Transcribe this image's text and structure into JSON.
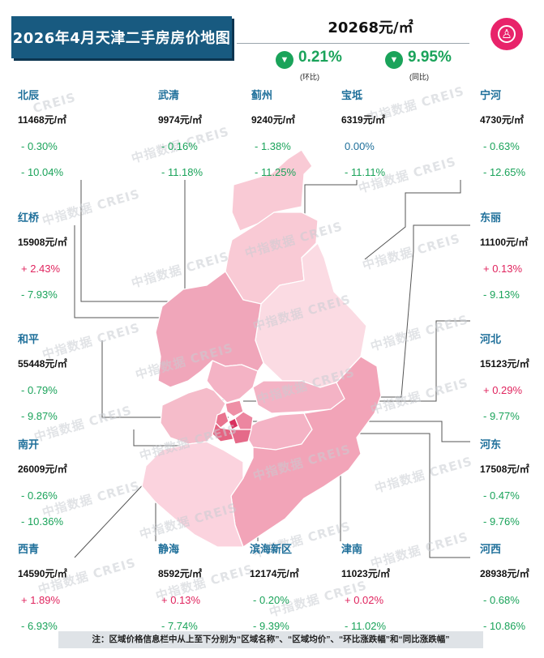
{
  "title": "2026年4月天津二手房房价地图",
  "summary": {
    "avg_price": "20268元/㎡",
    "mom": {
      "value": "0.21%",
      "label": "(环比)",
      "direction": "down"
    },
    "yoy": {
      "value": "9.95%",
      "label": "(同比)",
      "direction": "down"
    }
  },
  "colors": {
    "banner": "#185a80",
    "district_name": "#1e6f9a",
    "down": "#1aa35a",
    "up": "#e0245e",
    "logo": "#e8236a"
  },
  "logo_icon": "creis-logo-icon",
  "watermark": [
    "中指数据",
    "CREIS"
  ],
  "districts": [
    {
      "id": "beichen",
      "name": "北辰",
      "price": "11468元/㎡",
      "mom": "- 0.30%",
      "mom_dir": "down",
      "yoy": "- 10.04%",
      "yoy_dir": "down"
    },
    {
      "id": "wuqing",
      "name": "武清",
      "price": "9974元/㎡",
      "mom": "- 0.16%",
      "mom_dir": "down",
      "yoy": "- 11.18%",
      "yoy_dir": "down"
    },
    {
      "id": "jizhou",
      "name": "蓟州",
      "price": "9240元/㎡",
      "mom": "- 1.38%",
      "mom_dir": "down",
      "yoy": "- 11.25%",
      "yoy_dir": "down"
    },
    {
      "id": "baodi",
      "name": "宝坻",
      "price": "6319元/㎡",
      "mom": "0.00%",
      "mom_dir": "flat",
      "yoy": "- 11.11%",
      "yoy_dir": "down"
    },
    {
      "id": "ninghe",
      "name": "宁河",
      "price": "4730元/㎡",
      "mom": "- 0.63%",
      "mom_dir": "down",
      "yoy": "- 12.65%",
      "yoy_dir": "down"
    },
    {
      "id": "hongqiao",
      "name": "红桥",
      "price": "15908元/㎡",
      "mom": "+ 2.43%",
      "mom_dir": "up",
      "yoy": "- 7.93%",
      "yoy_dir": "down"
    },
    {
      "id": "dongli",
      "name": "东丽",
      "price": "11100元/㎡",
      "mom": "+ 0.13%",
      "mom_dir": "up",
      "yoy": "- 9.13%",
      "yoy_dir": "down"
    },
    {
      "id": "heping",
      "name": "和平",
      "price": "55448元/㎡",
      "mom": "- 0.79%",
      "mom_dir": "down",
      "yoy": "- 9.87%",
      "yoy_dir": "down"
    },
    {
      "id": "hebei",
      "name": "河北",
      "price": "15123元/㎡",
      "mom": "+ 0.29%",
      "mom_dir": "up",
      "yoy": "- 9.77%",
      "yoy_dir": "down"
    },
    {
      "id": "nankai",
      "name": "南开",
      "price": "26009元/㎡",
      "mom": "- 0.26%",
      "mom_dir": "down",
      "yoy": "- 10.36%",
      "yoy_dir": "down"
    },
    {
      "id": "hedong",
      "name": "河东",
      "price": "17508元/㎡",
      "mom": "- 0.47%",
      "mom_dir": "down",
      "yoy": "- 9.76%",
      "yoy_dir": "down"
    },
    {
      "id": "xiqing",
      "name": "西青",
      "price": "14590元/㎡",
      "mom": "+ 1.89%",
      "mom_dir": "up",
      "yoy": "- 6.93%",
      "yoy_dir": "down"
    },
    {
      "id": "jinghai",
      "name": "静海",
      "price": "8592元/㎡",
      "mom": "+ 0.13%",
      "mom_dir": "up",
      "yoy": "- 7.74%",
      "yoy_dir": "down"
    },
    {
      "id": "binhai",
      "name": "滨海新区",
      "price": "12174元/㎡",
      "mom": "- 0.20%",
      "mom_dir": "down",
      "yoy": "- 9.39%",
      "yoy_dir": "down"
    },
    {
      "id": "jinnan",
      "name": "津南",
      "price": "11023元/㎡",
      "mom": "+ 0.02%",
      "mom_dir": "up",
      "yoy": "- 11.02%",
      "yoy_dir": "down"
    },
    {
      "id": "hexi",
      "name": "河西",
      "price": "28938元/㎡",
      "mom": "- 0.68%",
      "mom_dir": "down",
      "yoy": "- 10.86%",
      "yoy_dir": "down"
    }
  ],
  "footnote": "注：区域价格信息栏中从上至下分别为“区域名称”、“区域均价”、“环比涨跌幅”和“同比涨跌幅”"
}
